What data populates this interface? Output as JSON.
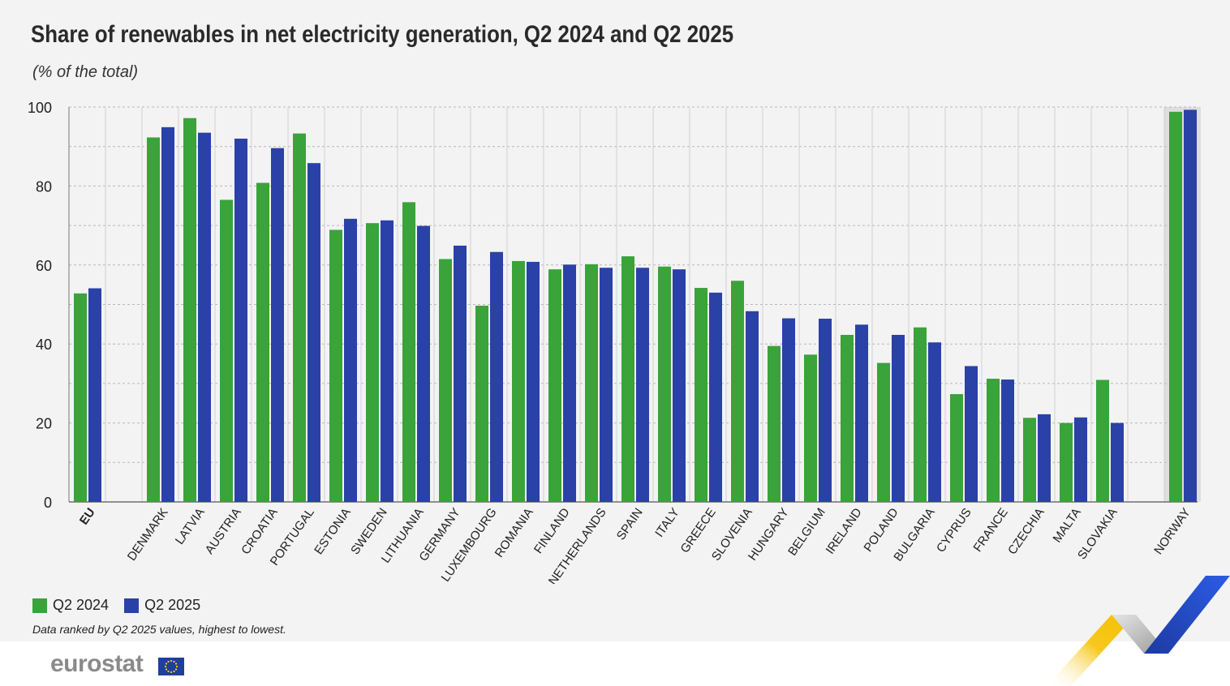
{
  "header": {
    "title": "Share of renewables in net electricity generation, Q2 2024 and Q2 2025",
    "subtitle": "(% of the total)"
  },
  "legend": [
    {
      "label": "Q2 2024",
      "color": "#3aa33a"
    },
    {
      "label": "Q2 2025",
      "color": "#2a41a8"
    }
  ],
  "note": "Data ranked by Q2 2025 values, highest to lowest.",
  "footer": {
    "logo_text": "eurostat"
  },
  "chart_data": {
    "type": "bar",
    "ylim": [
      0,
      100
    ],
    "yticks": [
      0,
      20,
      40,
      60,
      80,
      100
    ],
    "grid": true,
    "legend_position": "bottom-left",
    "groups": [
      {
        "categories": [
          "EU"
        ],
        "bold": true,
        "shaded": false
      },
      {
        "categories": [
          "DENMARK",
          "LATVIA",
          "AUSTRIA",
          "CROATIA",
          "PORTUGAL",
          "ESTONIA",
          "SWEDEN",
          "LITHUANIA",
          "GERMANY",
          "LUXEMBOURG",
          "ROMANIA",
          "FINLAND",
          "NETHERLANDS",
          "SPAIN",
          "ITALY",
          "GREECE",
          "SLOVENIA",
          "HUNGARY",
          "BELGIUM",
          "IRELAND",
          "POLAND",
          "BULGARIA",
          "CYPRUS",
          "FRANCE",
          "CZECHIA",
          "MALTA",
          "SLOVAKIA"
        ],
        "bold": false,
        "shaded": false
      },
      {
        "categories": [
          "NORWAY"
        ],
        "bold": false,
        "shaded": true
      }
    ],
    "categories": [
      "EU",
      "DENMARK",
      "LATVIA",
      "AUSTRIA",
      "CROATIA",
      "PORTUGAL",
      "ESTONIA",
      "SWEDEN",
      "LITHUANIA",
      "GERMANY",
      "LUXEMBOURG",
      "ROMANIA",
      "FINLAND",
      "NETHERLANDS",
      "SPAIN",
      "ITALY",
      "GREECE",
      "SLOVENIA",
      "HUNGARY",
      "BELGIUM",
      "IRELAND",
      "POLAND",
      "BULGARIA",
      "CYPRUS",
      "FRANCE",
      "CZECHIA",
      "MALTA",
      "SLOVAKIA",
      "NORWAY"
    ],
    "series": [
      {
        "name": "Q2 2024",
        "color": "#3aa33a",
        "values": [
          52.8,
          92.3,
          97.2,
          76.5,
          80.8,
          93.3,
          68.9,
          70.6,
          75.9,
          61.5,
          49.7,
          61.0,
          58.9,
          60.2,
          62.2,
          59.6,
          54.2,
          56.0,
          39.5,
          37.3,
          42.3,
          35.2,
          44.2,
          27.3,
          31.2,
          21.3,
          20.0,
          30.9,
          98.8
        ]
      },
      {
        "name": "Q2 2025",
        "color": "#2a41a8",
        "values": [
          54.1,
          94.9,
          93.5,
          92.0,
          89.6,
          85.8,
          71.7,
          71.3,
          69.9,
          64.9,
          63.3,
          60.8,
          60.1,
          59.3,
          59.3,
          58.9,
          53.0,
          48.3,
          46.5,
          46.4,
          44.9,
          42.3,
          40.4,
          34.4,
          31.0,
          22.2,
          21.4,
          20.0,
          99.3
        ]
      }
    ]
  }
}
